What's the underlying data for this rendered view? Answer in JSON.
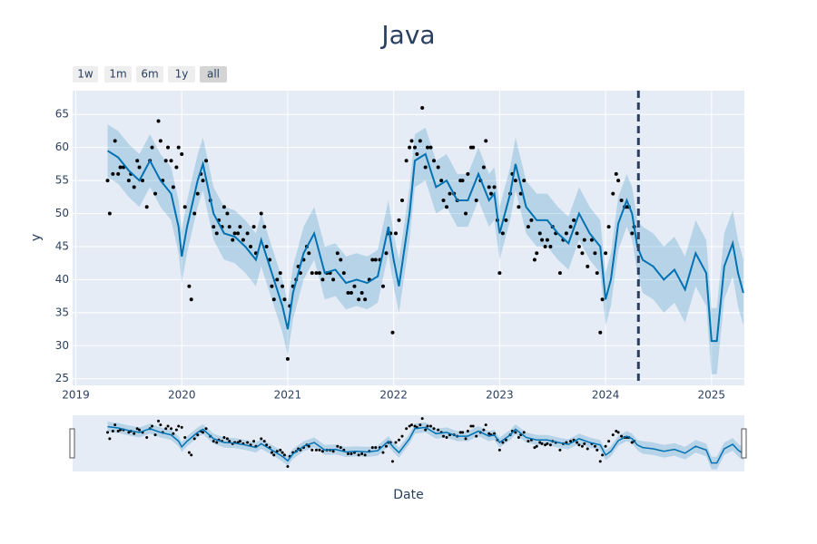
{
  "chart_data": {
    "type": "line",
    "title": "Java",
    "xlabel": "Date",
    "ylabel": "y",
    "xlim": [
      2018.97,
      2025.31
    ],
    "ylim": [
      24,
      68.6
    ],
    "xticks": [
      2019,
      2020,
      2021,
      2022,
      2023,
      2024,
      2025
    ],
    "yticks": [
      25,
      30,
      35,
      40,
      45,
      50,
      55,
      60,
      65
    ],
    "grid": true,
    "color": "#0072B2",
    "x": [
      2019.3,
      2019.4,
      2019.5,
      2019.6,
      2019.7,
      2019.8,
      2019.9,
      2019.97,
      2020.0,
      2020.05,
      2020.15,
      2020.2,
      2020.3,
      2020.4,
      2020.5,
      2020.6,
      2020.7,
      2020.75,
      2020.85,
      2020.95,
      2021.0,
      2021.05,
      2021.15,
      2021.25,
      2021.35,
      2021.45,
      2021.55,
      2021.65,
      2021.75,
      2021.85,
      2021.95,
      2022.0,
      2022.05,
      2022.15,
      2022.2,
      2022.3,
      2022.4,
      2022.5,
      2022.6,
      2022.7,
      2022.8,
      2022.9,
      2022.95,
      2023.0,
      2023.1,
      2023.15,
      2023.25,
      2023.35,
      2023.45,
      2023.55,
      2023.65,
      2023.75,
      2023.85,
      2023.95,
      2024.0,
      2024.05,
      2024.12,
      2024.2,
      2024.25,
      2024.3,
      2024.35,
      2024.45,
      2024.55,
      2024.65,
      2024.75,
      2024.85,
      2024.95,
      2025.0,
      2025.05,
      2025.12,
      2025.2,
      2025.25,
      2025.3
    ],
    "values": [
      59.5,
      58.5,
      56.5,
      55,
      58,
      55,
      53,
      48,
      43.5,
      48,
      55,
      57.5,
      50,
      47,
      46.5,
      45,
      43,
      46,
      41,
      36,
      32.5,
      38,
      44,
      47,
      41,
      41.5,
      39.5,
      40,
      39.5,
      40.5,
      48,
      43,
      39,
      50,
      58,
      59,
      54,
      55,
      52,
      52,
      56,
      52,
      53,
      47,
      53,
      57.5,
      51,
      49,
      49,
      47,
      45.5,
      50,
      47,
      45,
      37,
      40,
      48.5,
      52,
      50,
      45,
      43,
      42,
      40,
      41.5,
      38.5,
      44,
      41,
      30.7,
      30.7,
      42,
      45.5,
      41,
      38
    ],
    "band": {
      "color": "rgba(0,114,178,0.2)",
      "lower": [
        55.5,
        54.5,
        52.5,
        51,
        54,
        51,
        49,
        44,
        39.5,
        44,
        51,
        53.5,
        46,
        43,
        42.5,
        41,
        39,
        42,
        37,
        32,
        28.5,
        34,
        40,
        43,
        37,
        37.5,
        35.5,
        36,
        35.5,
        36.5,
        44,
        39,
        35,
        46,
        54,
        55,
        50,
        51,
        48,
        48,
        52,
        48,
        49,
        43,
        49,
        53.5,
        47,
        45,
        45,
        43,
        41.5,
        46,
        43,
        41,
        33,
        36,
        44.5,
        48,
        46,
        41,
        38,
        37,
        35,
        36.5,
        33.5,
        39,
        36,
        25.7,
        25.7,
        37,
        40.5,
        36,
        33
      ],
      "upper": [
        63.5,
        62.5,
        60.5,
        59,
        62,
        59,
        57,
        52,
        47.5,
        52,
        59,
        61.5,
        54,
        51,
        50.5,
        49,
        47,
        50,
        45,
        40,
        36.5,
        42,
        48,
        51,
        45,
        45.5,
        43.5,
        44,
        43.5,
        44.5,
        52,
        47,
        43,
        54,
        62,
        63,
        58,
        59,
        56,
        56,
        60,
        56,
        57,
        51,
        57,
        61.5,
        55,
        53,
        53,
        51,
        49.5,
        54,
        51,
        49,
        41,
        44,
        52.5,
        56,
        54,
        49,
        48,
        47,
        45,
        46.5,
        43.5,
        49,
        46,
        35.7,
        35.7,
        47,
        50.5,
        46,
        43
      ]
    },
    "observations": {
      "color": "#000000",
      "x": [
        2019.3,
        2019.32,
        2019.35,
        2019.37,
        2019.4,
        2019.42,
        2019.45,
        2019.5,
        2019.52,
        2019.55,
        2019.58,
        2019.6,
        2019.63,
        2019.67,
        2019.7,
        2019.72,
        2019.75,
        2019.78,
        2019.8,
        2019.82,
        2019.85,
        2019.87,
        2019.9,
        2019.92,
        2019.95,
        2019.97,
        2020.0,
        2020.03,
        2020.07,
        2020.09,
        2020.12,
        2020.15,
        2020.18,
        2020.2,
        2020.23,
        2020.27,
        2020.3,
        2020.33,
        2020.35,
        2020.38,
        2020.4,
        2020.43,
        2020.45,
        2020.48,
        2020.5,
        2020.53,
        2020.55,
        2020.58,
        2020.62,
        2020.65,
        2020.68,
        2020.7,
        2020.75,
        2020.78,
        2020.8,
        2020.83,
        2020.85,
        2020.87,
        2020.9,
        2020.93,
        2020.95,
        2020.97,
        2021.0,
        2021.02,
        2021.05,
        2021.08,
        2021.1,
        2021.12,
        2021.15,
        2021.18,
        2021.2,
        2021.23,
        2021.27,
        2021.3,
        2021.33,
        2021.37,
        2021.4,
        2021.43,
        2021.47,
        2021.5,
        2021.53,
        2021.57,
        2021.6,
        2021.63,
        2021.67,
        2021.7,
        2021.73,
        2021.77,
        2021.8,
        2021.83,
        2021.87,
        2021.9,
        2021.93,
        2021.95,
        2021.97,
        2021.99,
        2022.02,
        2022.05,
        2022.08,
        2022.12,
        2022.15,
        2022.17,
        2022.2,
        2022.22,
        2022.25,
        2022.27,
        2022.3,
        2022.32,
        2022.35,
        2022.38,
        2022.42,
        2022.45,
        2022.47,
        2022.5,
        2022.53,
        2022.57,
        2022.6,
        2022.63,
        2022.65,
        2022.68,
        2022.7,
        2022.73,
        2022.75,
        2022.78,
        2022.82,
        2022.85,
        2022.87,
        2022.9,
        2022.92,
        2022.95,
        2022.98,
        2023.0,
        2023.03,
        2023.06,
        2023.1,
        2023.12,
        2023.15,
        2023.18,
        2023.2,
        2023.23,
        2023.27,
        2023.3,
        2023.33,
        2023.35,
        2023.38,
        2023.4,
        2023.43,
        2023.45,
        2023.48,
        2023.5,
        2023.53,
        2023.57,
        2023.6,
        2023.63,
        2023.67,
        2023.7,
        2023.73,
        2023.75,
        2023.78,
        2023.8,
        2023.83,
        2023.87,
        2023.9,
        2023.92,
        2023.95,
        2023.97,
        2024.0,
        2024.03,
        2024.07,
        2024.1,
        2024.12,
        2024.15,
        2024.18,
        2024.2,
        2024.22,
        2024.25,
        2024.27
      ],
      "values": [
        55,
        50,
        56,
        61,
        56,
        57,
        57,
        55,
        56,
        54,
        58,
        57,
        55,
        51,
        58,
        60,
        53,
        64,
        61,
        55,
        58,
        60,
        58,
        54,
        57,
        60,
        59,
        51,
        39,
        37,
        50,
        53,
        56,
        55,
        58,
        52,
        48,
        47,
        49,
        48,
        51,
        50,
        48,
        46,
        47,
        47,
        48,
        46,
        47,
        45,
        48,
        44,
        50,
        48,
        45,
        43,
        39,
        37,
        40,
        41,
        39,
        37,
        28,
        36,
        39,
        40,
        42,
        41,
        43,
        45,
        44,
        41,
        41,
        41,
        40,
        41,
        41,
        40,
        44,
        43,
        41,
        38,
        38,
        39,
        37,
        38,
        37,
        40,
        43,
        43,
        43,
        39,
        44,
        47,
        47,
        32,
        47,
        49,
        52,
        58,
        60,
        61,
        60,
        59,
        61,
        66,
        57,
        60,
        60,
        58,
        57,
        55,
        52,
        51,
        53,
        53,
        52,
        55,
        55,
        50,
        56,
        60,
        60,
        52,
        55,
        57,
        61,
        54,
        53,
        54,
        49,
        41,
        47,
        49,
        53,
        56,
        55,
        51,
        53,
        55,
        48,
        49,
        43,
        44,
        47,
        46,
        45,
        46,
        45,
        48,
        47,
        41,
        46,
        47,
        48,
        49,
        47,
        45,
        44,
        46,
        42,
        46,
        44,
        41,
        32,
        37,
        44,
        48,
        53,
        56,
        55,
        52,
        51,
        51,
        51,
        47,
        48
      ]
    },
    "forecast_start": 2024.31,
    "range_buttons": [
      "1w",
      "1m",
      "6m",
      "1y",
      "all"
    ],
    "active_button": 4,
    "rangeslider": true
  }
}
